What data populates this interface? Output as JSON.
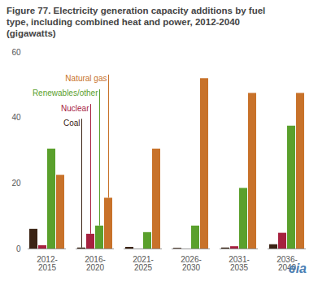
{
  "chart_data": {
    "type": "bar",
    "title": "Figure 77. Electricity generation capacity additions by fuel type, including combined heat and power, 2012-2040 (gigawatts)",
    "categories": [
      "2012-2015",
      "2016-2020",
      "2021-2025",
      "2026-2030",
      "2031-2035",
      "2036-2040"
    ],
    "series": [
      {
        "name": "Coal",
        "color": "#3b2314",
        "values": [
          6,
          0.3,
          0.5,
          0.2,
          0.3,
          1.3
        ]
      },
      {
        "name": "Nuclear",
        "color": "#a6213f",
        "values": [
          1,
          4.5,
          0,
          0,
          0.7,
          4.8
        ]
      },
      {
        "name": "Renewables/other",
        "color": "#5aa02c",
        "values": [
          30.5,
          7,
          5,
          7,
          18.5,
          37.5
        ]
      },
      {
        "name": "Natural gas",
        "color": "#c8722a",
        "values": [
          22.5,
          15.5,
          30.5,
          52,
          47.5,
          47.5
        ]
      }
    ],
    "ylim": [
      0,
      60
    ],
    "yticks": [
      0,
      20,
      40,
      60
    ],
    "grid": false,
    "annotations": [
      "eia"
    ]
  }
}
